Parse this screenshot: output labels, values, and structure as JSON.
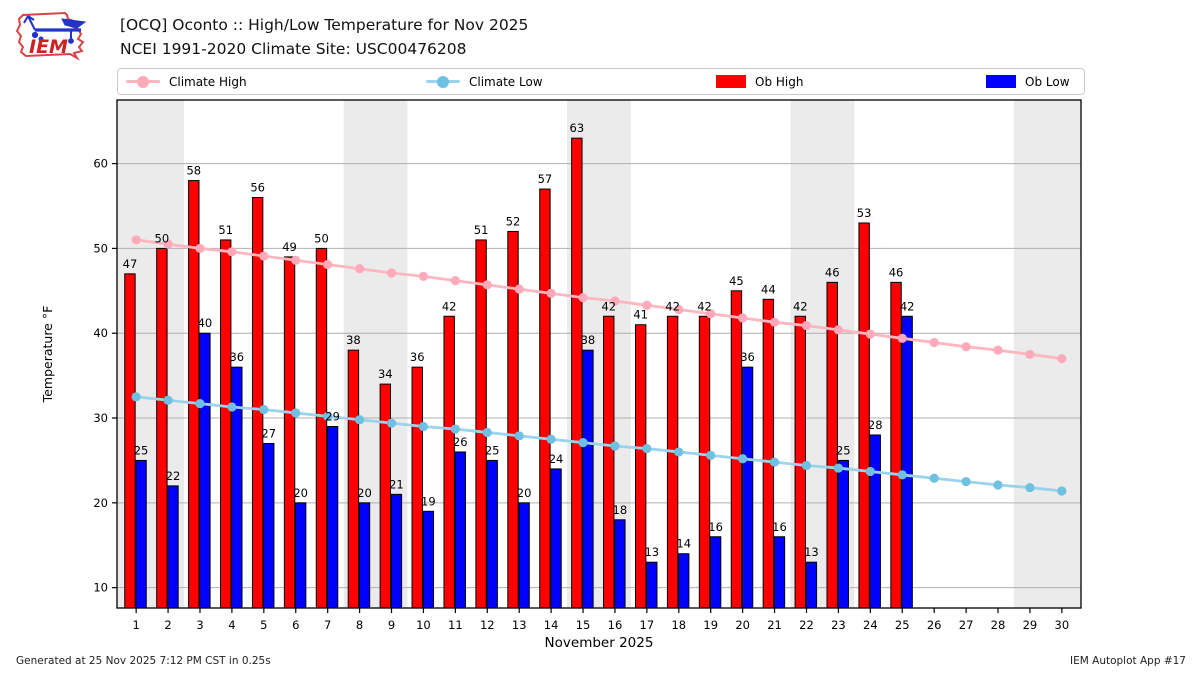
{
  "header": {
    "logo_text": "IEM",
    "title_line1": "[OCQ] Oconto :: High/Low Temperature for Nov 2025",
    "title_line2": "NCEI 1991-2020 Climate Site: USC00476208"
  },
  "legend": {
    "items": [
      {
        "label": "Climate High",
        "marker": "line-dot",
        "color": "#ffb6c1",
        "dot_color": "#ffa9bb"
      },
      {
        "label": "Climate Low",
        "marker": "line-dot",
        "color": "#9bd2ec",
        "dot_color": "#6fc0e2"
      },
      {
        "label": "Ob High",
        "marker": "swatch",
        "color": "#ff0000"
      },
      {
        "label": "Ob Low",
        "marker": "swatch",
        "color": "#0000ff"
      }
    ]
  },
  "footer": {
    "left": "Generated at 25 Nov 2025 7:12 PM CST in 0.25s",
    "right": "IEM Autoplot App #17"
  },
  "chart_data": {
    "type": "bar",
    "title": "[OCQ] Oconto :: High/Low Temperature for Nov 2025",
    "subtitle": "NCEI 1991-2020 Climate Site: USC00476208",
    "xlabel": "November 2025",
    "ylabel": "Temperature °F",
    "x": [
      1,
      2,
      3,
      4,
      5,
      6,
      7,
      8,
      9,
      10,
      11,
      12,
      13,
      14,
      15,
      16,
      17,
      18,
      19,
      20,
      21,
      22,
      23,
      24,
      25,
      26,
      27,
      28,
      29,
      30
    ],
    "xlim": [
      0.4,
      30.6
    ],
    "ylim": [
      7.6,
      67.5
    ],
    "yticks": [
      10,
      20,
      30,
      40,
      50,
      60
    ],
    "grid": "horizontal",
    "gridline_color": "#b0b0b0",
    "legend_position": "top",
    "weekend_bands": [
      [
        0.4,
        2.5
      ],
      [
        7.5,
        9.5
      ],
      [
        14.5,
        16.5
      ],
      [
        21.5,
        23.5
      ],
      [
        28.5,
        30.6
      ]
    ],
    "band_color": "#ebebeb",
    "series": [
      {
        "name": "Ob High",
        "type": "bar",
        "color": "#ff0000",
        "values": [
          47,
          50,
          58,
          51,
          56,
          49,
          50,
          38,
          34,
          36,
          42,
          51,
          52,
          57,
          63,
          42,
          41,
          42,
          42,
          45,
          44,
          42,
          46,
          53,
          46,
          null,
          null,
          null,
          null,
          null
        ]
      },
      {
        "name": "Ob Low",
        "type": "bar",
        "color": "#0000ff",
        "values": [
          25,
          22,
          40,
          36,
          27,
          20,
          29,
          20,
          21,
          19,
          26,
          25,
          20,
          24,
          38,
          18,
          13,
          14,
          16,
          36,
          16,
          13,
          25,
          28,
          42,
          null,
          null,
          null,
          null,
          null
        ]
      },
      {
        "name": "Climate High",
        "type": "line",
        "color": "#ffb6c1",
        "marker_color": "#ffa9bb",
        "values": [
          51.0,
          50.5,
          50.0,
          49.6,
          49.1,
          48.6,
          48.1,
          47.6,
          47.1,
          46.7,
          46.2,
          45.7,
          45.2,
          44.7,
          44.2,
          43.8,
          43.3,
          42.8,
          42.3,
          41.8,
          41.3,
          40.9,
          40.4,
          39.9,
          39.4,
          38.9,
          38.4,
          38.0,
          37.5,
          37.0
        ]
      },
      {
        "name": "Climate Low",
        "type": "line",
        "color": "#9bd2ec",
        "marker_color": "#6fc0e2",
        "values": [
          32.5,
          32.1,
          31.7,
          31.3,
          31.0,
          30.6,
          30.2,
          29.8,
          29.4,
          29.0,
          28.7,
          28.3,
          27.9,
          27.5,
          27.1,
          26.7,
          26.4,
          26.0,
          25.6,
          25.2,
          24.8,
          24.4,
          24.1,
          23.7,
          23.3,
          22.9,
          22.5,
          22.1,
          21.8,
          21.4
        ]
      }
    ]
  }
}
